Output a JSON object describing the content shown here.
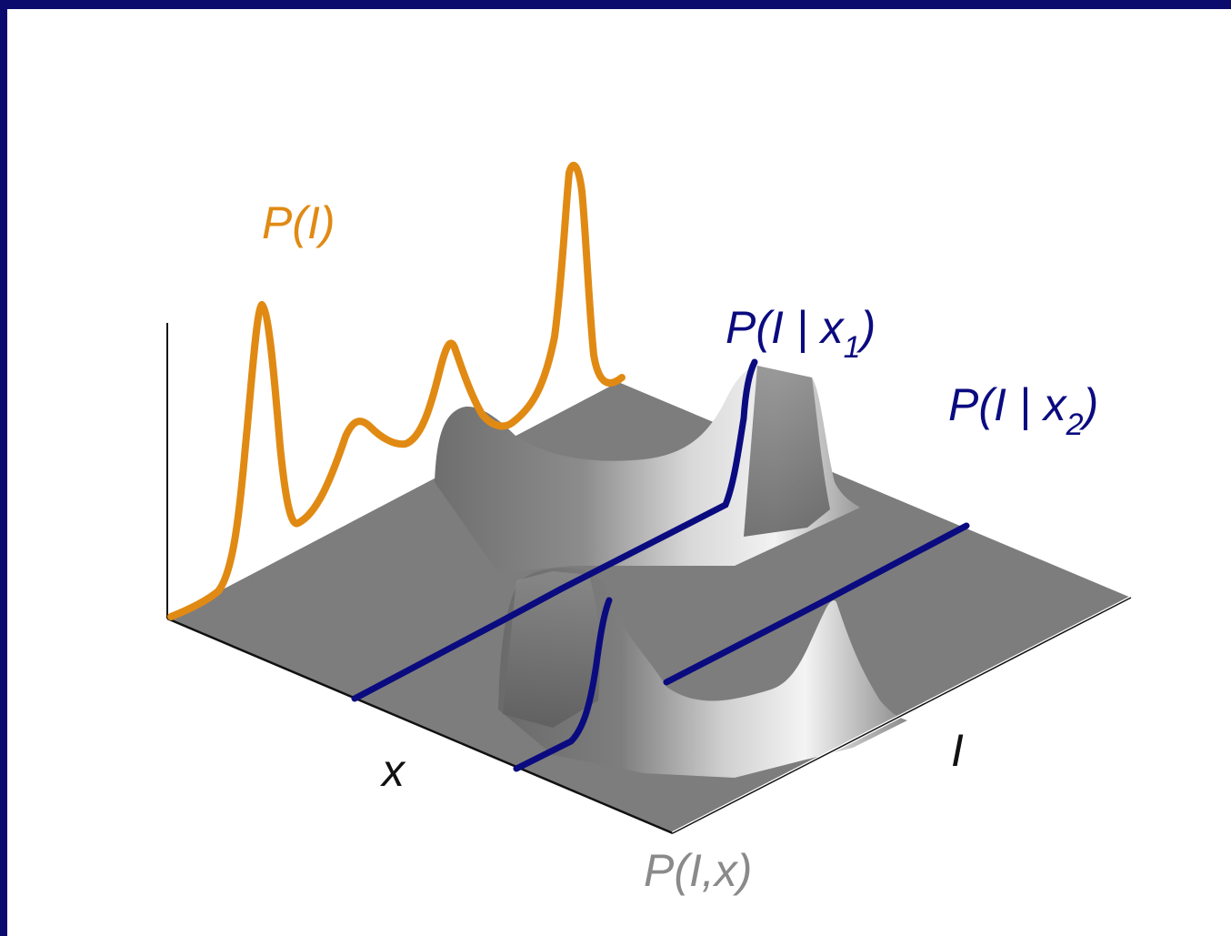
{
  "colors": {
    "frame": "#0b0b6e",
    "marginal": "#e08a14",
    "conditional": "#0b0b80",
    "surface": "#7d7d7d",
    "joint_label": "#8a8a8a"
  },
  "labels": {
    "marginal": "P(I)",
    "cond1_main": "P(I | x",
    "cond1_sub": "1",
    "cond1_close": ")",
    "cond2_main": "P(I | x",
    "cond2_sub": "2",
    "cond2_close": ")",
    "axis_x": "x",
    "axis_i": "I",
    "joint": "P(I,x)"
  }
}
